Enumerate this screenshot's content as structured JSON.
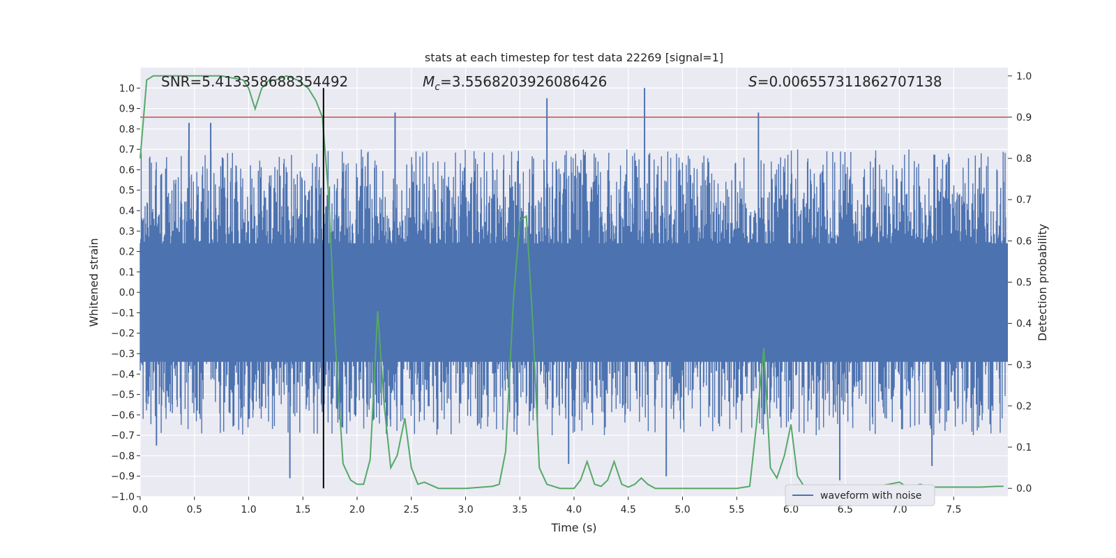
{
  "chart_data": {
    "type": "line",
    "title": "stats at each timestep for test data 22269 [signal=1]",
    "xlabel": "Time (s)",
    "ylabel": "Whitened strain",
    "y2label": "Detection probability",
    "xlim": [
      0.0,
      8.0
    ],
    "ylim": [
      -1.0,
      1.1
    ],
    "y2lim": [
      -0.02,
      1.02
    ],
    "xticks": [
      "0.0",
      "0.5",
      "1.0",
      "1.5",
      "2.0",
      "2.5",
      "3.0",
      "3.5",
      "4.0",
      "4.5",
      "5.0",
      "5.5",
      "6.0",
      "6.5",
      "7.0",
      "7.5"
    ],
    "yticks": [
      "1.0",
      "0.9",
      "0.8",
      "0.7",
      "0.6",
      "0.5",
      "0.4",
      "0.3",
      "0.2",
      "0.1",
      "0.0",
      "-0.1",
      "-0.2",
      "-0.3",
      "-0.4",
      "-0.5",
      "-0.6",
      "-0.7",
      "-0.8",
      "-0.9",
      "-1.0"
    ],
    "y2ticks": [
      "1.0",
      "0.9",
      "0.8",
      "0.7",
      "0.6",
      "0.5",
      "0.4",
      "0.3",
      "0.2",
      "0.1",
      "0.0"
    ],
    "annotations": {
      "snr": "SNR=5.413358688354492",
      "mc_symbol": "M",
      "mc_sub": "c",
      "mc_value": "=3.5568203926086426",
      "s_symbol": "S",
      "s_value": "=0.006557311862707138"
    },
    "legend": [
      {
        "label": "waveform with noise",
        "color": "#4c72b0"
      }
    ],
    "threshold": {
      "value": 0.9,
      "axis": "right",
      "color": "#c44e52"
    },
    "marker_time": 1.69,
    "series": [
      {
        "name": "waveform with noise",
        "color": "#4c72b0",
        "axis": "left",
        "envelope_typical": 0.4,
        "spikes": [
          {
            "x": 0.45,
            "y": 0.83
          },
          {
            "x": 0.65,
            "y": 0.83
          },
          {
            "x": 1.38,
            "y": -0.91
          },
          {
            "x": 2.35,
            "y": 0.88
          },
          {
            "x": 3.75,
            "y": 0.95
          },
          {
            "x": 3.95,
            "y": -0.84
          },
          {
            "x": 4.65,
            "y": 1.0
          },
          {
            "x": 5.7,
            "y": 0.88
          },
          {
            "x": 6.45,
            "y": -0.92
          },
          {
            "x": 7.3,
            "y": -0.85
          },
          {
            "x": 4.85,
            "y": -0.9
          },
          {
            "x": 0.15,
            "y": -0.75
          }
        ]
      },
      {
        "name": "detection probability",
        "color": "#55a868",
        "axis": "right",
        "x": [
          0.0,
          0.06,
          0.12,
          0.25,
          0.5,
          0.75,
          0.85,
          0.95,
          1.0,
          1.06,
          1.12,
          1.19,
          1.25,
          1.35,
          1.45,
          1.55,
          1.62,
          1.68,
          1.74,
          1.8,
          1.87,
          1.94,
          2.0,
          2.06,
          2.12,
          2.19,
          2.25,
          2.31,
          2.37,
          2.44,
          2.5,
          2.56,
          2.62,
          2.75,
          3.0,
          3.25,
          3.31,
          3.37,
          3.44,
          3.5,
          3.56,
          3.62,
          3.68,
          3.75,
          3.87,
          4.0,
          4.06,
          4.12,
          4.19,
          4.25,
          4.31,
          4.37,
          4.44,
          4.5,
          4.56,
          4.62,
          4.68,
          4.75,
          4.81,
          5.0,
          5.5,
          5.62,
          5.68,
          5.75,
          5.81,
          5.87,
          5.94,
          6.0,
          6.06,
          6.12,
          6.19,
          6.25,
          6.5,
          6.75,
          6.9,
          7.0,
          7.06,
          7.12,
          7.19,
          7.25,
          7.31,
          7.5,
          7.75,
          7.9,
          7.96
        ],
        "y": [
          0.8,
          0.99,
          1.0,
          1.0,
          1.0,
          1.0,
          0.995,
          0.99,
          0.97,
          0.92,
          0.97,
          0.99,
          0.99,
          1.0,
          0.99,
          0.97,
          0.94,
          0.9,
          0.7,
          0.35,
          0.06,
          0.02,
          0.01,
          0.01,
          0.07,
          0.43,
          0.2,
          0.05,
          0.08,
          0.17,
          0.05,
          0.01,
          0.015,
          0.0,
          0.0,
          0.005,
          0.01,
          0.09,
          0.45,
          0.65,
          0.66,
          0.4,
          0.05,
          0.01,
          0.0,
          0.0,
          0.02,
          0.065,
          0.01,
          0.005,
          0.02,
          0.065,
          0.01,
          0.003,
          0.01,
          0.025,
          0.01,
          0.0,
          0.0,
          0.0,
          0.0,
          0.005,
          0.15,
          0.34,
          0.05,
          0.025,
          0.08,
          0.155,
          0.03,
          0.005,
          0.004,
          0.003,
          0.003,
          0.003,
          0.01,
          0.015,
          0.005,
          0.003,
          0.01,
          0.006,
          0.003,
          0.003,
          0.003,
          0.005,
          0.005
        ]
      }
    ]
  }
}
